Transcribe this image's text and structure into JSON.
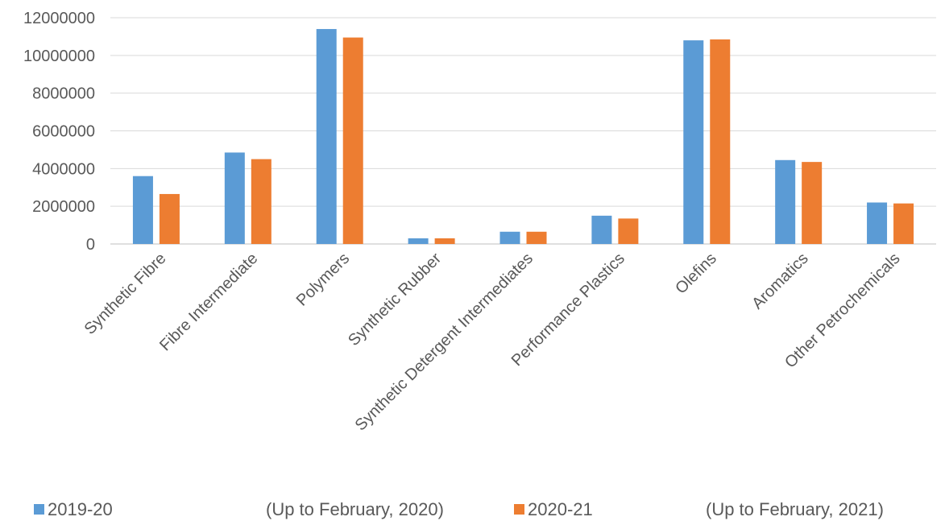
{
  "chart_data": {
    "type": "bar",
    "categories": [
      "Synthetic Fibre",
      "Fibre Intermediate",
      "Polymers",
      "Synthetic Rubber",
      "Synthetic Detergent Intermediates",
      "Performance Plastics",
      "Olefins",
      "Aromatics",
      "Other Petrochemicals"
    ],
    "series": [
      {
        "name": "2019-20                     (Up to February, 2020)",
        "color": "#5B9BD5",
        "values": [
          3600000,
          4850000,
          11400000,
          300000,
          650000,
          1500000,
          10800000,
          4450000,
          2200000
        ]
      },
      {
        "name": "2020-21                    (Up to February, 2021)",
        "color": "#ED7D31",
        "values": [
          2650000,
          4500000,
          10950000,
          300000,
          650000,
          1350000,
          10850000,
          4350000,
          2150000
        ]
      }
    ],
    "yticks": [
      "0",
      "2000000",
      "4000000",
      "6000000",
      "8000000",
      "10000000",
      "12000000"
    ],
    "ylim": [
      0,
      12000000
    ],
    "grid": true,
    "legend_position": "bottom"
  },
  "legend": {
    "items": [
      {
        "label": "2019-20",
        "note": "(Up to February, 2020)",
        "color": "#5B9BD5"
      },
      {
        "label": "2020-21",
        "note": "(Up to February, 2021)",
        "color": "#ED7D31"
      }
    ]
  }
}
